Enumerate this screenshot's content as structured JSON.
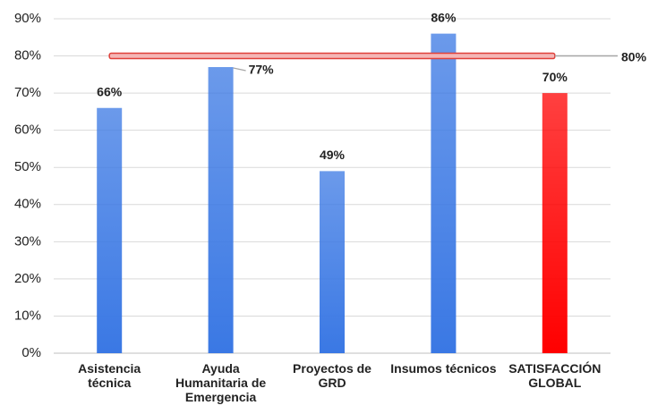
{
  "chart_data": {
    "type": "bar",
    "categories": [
      "Asistencia técnica",
      "Ayuda Humanitaria de Emergencia",
      "Proyectos de GRD",
      "Insumos técnicos",
      "SATISFACCIÓN GLOBAL"
    ],
    "values": [
      66,
      77,
      49,
      86,
      70
    ],
    "value_labels": [
      "66%",
      "77%",
      "49%",
      "86%",
      "70%"
    ],
    "colors": [
      "#3a78e4",
      "#3a78e4",
      "#3a78e4",
      "#3a78e4",
      "#ff0000"
    ],
    "reference_line": {
      "value": 80,
      "label": "80%",
      "color": "#e0403a"
    },
    "ylim": [
      0,
      90
    ],
    "yticks": [
      {
        "value": 0,
        "label": "0%"
      },
      {
        "value": 10,
        "label": "10%"
      },
      {
        "value": 20,
        "label": "20%"
      },
      {
        "value": 30,
        "label": "30%"
      },
      {
        "value": 40,
        "label": "40%"
      },
      {
        "value": 50,
        "label": "50%"
      },
      {
        "value": 60,
        "label": "60%"
      },
      {
        "value": 70,
        "label": "70%"
      },
      {
        "value": 80,
        "label": "80%"
      },
      {
        "value": 90,
        "label": "90%"
      }
    ],
    "grid": true
  }
}
